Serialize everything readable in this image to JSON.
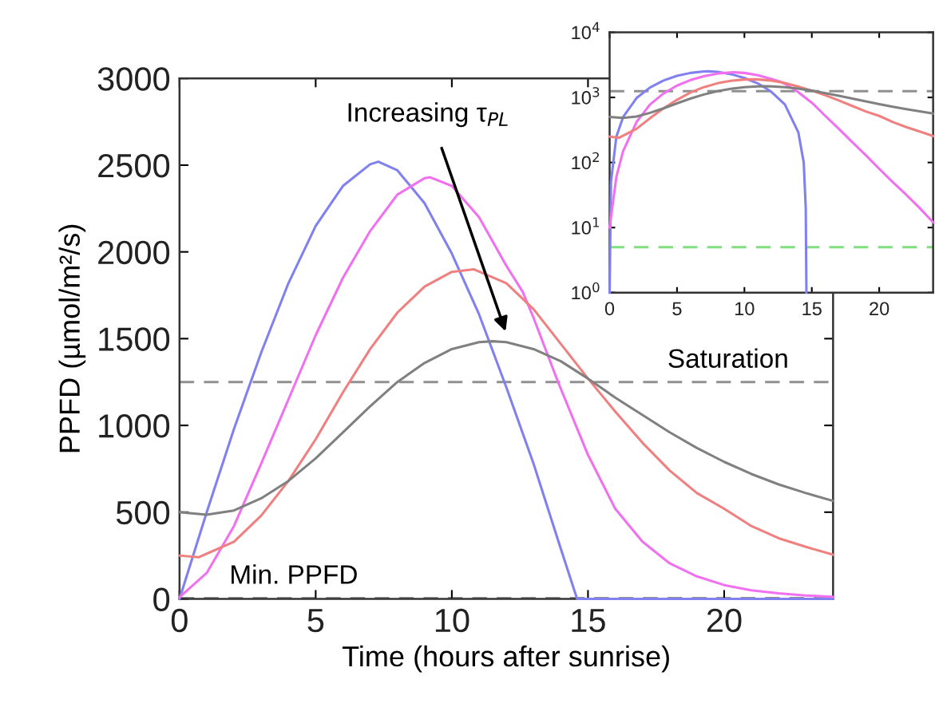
{
  "chart_data": [
    {
      "type": "line",
      "xlabel": "Time (hours after sunrise)",
      "ylabel": "PPFD (µmol/m²/s)",
      "xlim": [
        0,
        24
      ],
      "ylim": [
        0,
        3000
      ],
      "xticks": [
        0,
        5,
        10,
        15,
        20
      ],
      "yticks": [
        0,
        500,
        1000,
        1500,
        2000,
        2500,
        3000
      ],
      "grid": false,
      "line_style": "solid",
      "series": [
        {
          "color": "#8080f0",
          "x": [
            0,
            1,
            2,
            3,
            4,
            5,
            6,
            7,
            7.3,
            8,
            9,
            10,
            11,
            12,
            13,
            14,
            14.6,
            16,
            18,
            20,
            22,
            24
          ],
          "values": [
            0,
            500,
            980,
            1420,
            1820,
            2150,
            2380,
            2505,
            2520,
            2470,
            2280,
            1990,
            1640,
            1220,
            780,
            290,
            0,
            0,
            0,
            0,
            0,
            0
          ]
        },
        {
          "color": "#f070f0",
          "x": [
            0,
            1,
            2,
            3,
            4,
            5,
            6,
            7,
            8,
            9,
            9.2,
            10,
            11,
            12,
            12.6,
            13,
            13.9,
            15,
            16,
            17,
            18,
            19,
            20,
            21,
            22,
            23,
            24
          ],
          "values": [
            10,
            150,
            420,
            780,
            1150,
            1520,
            1850,
            2120,
            2330,
            2425,
            2430,
            2380,
            2200,
            1920,
            1770,
            1620,
            1250,
            830,
            520,
            330,
            205,
            130,
            80,
            50,
            32,
            20,
            12
          ]
        },
        {
          "color": "#f08080",
          "x": [
            0,
            0.7,
            2,
            3,
            4,
            5,
            6,
            7,
            8,
            9,
            10,
            10.8,
            12,
            13,
            14,
            15,
            16,
            17,
            18,
            19,
            20,
            21,
            22,
            23,
            24
          ],
          "values": [
            250,
            240,
            330,
            480,
            680,
            920,
            1190,
            1440,
            1650,
            1800,
            1885,
            1900,
            1820,
            1670,
            1470,
            1270,
            1080,
            900,
            740,
            610,
            520,
            420,
            350,
            300,
            255
          ]
        },
        {
          "color": "#808080",
          "x": [
            0,
            1,
            2,
            3,
            4,
            5,
            6,
            7,
            8,
            9,
            10,
            11,
            11.5,
            12,
            13,
            14,
            15,
            16,
            17,
            18,
            19,
            20,
            21,
            22,
            23,
            24
          ],
          "values": [
            500,
            485,
            510,
            580,
            680,
            810,
            960,
            1110,
            1250,
            1360,
            1440,
            1480,
            1485,
            1480,
            1440,
            1370,
            1270,
            1160,
            1060,
            960,
            870,
            790,
            720,
            660,
            610,
            565
          ]
        }
      ],
      "ref_lines": [
        {
          "axis": "y",
          "value": 1250,
          "label": "Saturation",
          "color": "#909090",
          "line_style": "dashed"
        },
        {
          "axis": "y",
          "value": 5,
          "label": "Min. PPFD",
          "color": "#909090",
          "line_style": "dashed"
        }
      ],
      "annotations": [
        "Increasing τ$_{PL}$"
      ]
    },
    {
      "type": "line",
      "log": "y",
      "xlim": [
        0,
        24
      ],
      "ylim": [
        1,
        10000
      ],
      "xticks": [
        0,
        5,
        10,
        15,
        20
      ],
      "yticks": [
        {
          "value": 1,
          "label": "10$^{0}$"
        },
        {
          "value": 10,
          "label": "10$^{1}$"
        },
        {
          "value": 100,
          "label": "10$^{2}$"
        },
        {
          "value": 1000,
          "label": "10$^{3}$"
        },
        {
          "value": 10000,
          "label": "10$^{4}$"
        }
      ],
      "grid": false,
      "line_style": "solid",
      "series": [
        {
          "color": "#8080f0",
          "x": [
            0,
            0.1,
            0.5,
            1,
            2,
            3,
            4,
            5,
            6,
            7,
            7.3,
            8,
            9,
            10,
            11,
            12,
            13,
            14,
            14.4,
            14.55,
            14.6
          ],
          "values": [
            1,
            50,
            250,
            500,
            980,
            1420,
            1820,
            2150,
            2380,
            2505,
            2520,
            2470,
            2280,
            1990,
            1640,
            1220,
            780,
            290,
            100,
            20,
            1
          ]
        },
        {
          "color": "#f070f0",
          "x": [
            0,
            0.5,
            1,
            2,
            3,
            4,
            5,
            6,
            7,
            8,
            9,
            9.2,
            10,
            11,
            12,
            12.6,
            13,
            13.9,
            15,
            16,
            17,
            18,
            19,
            20,
            21,
            22,
            23,
            24
          ],
          "values": [
            10,
            60,
            150,
            420,
            780,
            1150,
            1520,
            1850,
            2120,
            2330,
            2425,
            2430,
            2380,
            2200,
            1920,
            1770,
            1620,
            1250,
            830,
            520,
            330,
            205,
            130,
            80,
            50,
            32,
            20,
            12
          ]
        },
        {
          "color": "#f08080",
          "x": [
            0,
            0.7,
            2,
            3,
            4,
            5,
            6,
            7,
            8,
            9,
            10,
            10.8,
            12,
            13,
            14,
            15,
            16,
            17,
            18,
            19,
            20,
            21,
            22,
            23,
            24
          ],
          "values": [
            250,
            240,
            330,
            480,
            680,
            920,
            1190,
            1440,
            1650,
            1800,
            1885,
            1900,
            1820,
            1670,
            1470,
            1270,
            1080,
            900,
            740,
            610,
            520,
            420,
            350,
            300,
            255
          ]
        },
        {
          "color": "#808080",
          "x": [
            0,
            1,
            2,
            3,
            4,
            5,
            6,
            7,
            8,
            9,
            10,
            11,
            11.5,
            12,
            13,
            14,
            15,
            16,
            17,
            18,
            19,
            20,
            21,
            22,
            23,
            24
          ],
          "values": [
            500,
            485,
            510,
            580,
            680,
            810,
            960,
            1110,
            1250,
            1360,
            1440,
            1480,
            1485,
            1480,
            1440,
            1370,
            1270,
            1160,
            1060,
            960,
            870,
            790,
            720,
            660,
            610,
            565
          ]
        }
      ],
      "ref_lines": [
        {
          "axis": "y",
          "value": 1250,
          "color": "#909090",
          "line_style": "dashed"
        },
        {
          "axis": "y",
          "value": 5,
          "color": "#80e080",
          "line_style": "dashed"
        }
      ]
    }
  ]
}
